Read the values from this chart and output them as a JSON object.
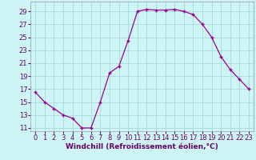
{
  "hours": [
    0,
    1,
    2,
    3,
    4,
    5,
    6,
    7,
    8,
    9,
    10,
    11,
    12,
    13,
    14,
    15,
    16,
    17,
    18,
    19,
    20,
    21,
    22,
    23
  ],
  "values": [
    16.5,
    15.0,
    14.0,
    13.0,
    12.5,
    11.0,
    11.0,
    15.0,
    19.5,
    20.5,
    24.5,
    29.0,
    29.3,
    29.2,
    29.2,
    29.3,
    29.0,
    28.5,
    27.0,
    25.0,
    22.0,
    20.0,
    18.5,
    17.0
  ],
  "line_color": "#990099",
  "marker": "+",
  "bg_color": "#cef5f5",
  "grid_color": "#aadddd",
  "xlabel": "Windchill (Refroidissement éolien,°C)",
  "xlim": [
    -0.5,
    23.5
  ],
  "ylim": [
    10.5,
    30.5
  ],
  "yticks": [
    11,
    13,
    15,
    17,
    19,
    21,
    23,
    25,
    27,
    29
  ],
  "xticks": [
    0,
    1,
    2,
    3,
    4,
    5,
    6,
    7,
    8,
    9,
    10,
    11,
    12,
    13,
    14,
    15,
    16,
    17,
    18,
    19,
    20,
    21,
    22,
    23
  ],
  "xlabel_fontsize": 6.5,
  "tick_fontsize": 6.0,
  "label_color": "#660066"
}
